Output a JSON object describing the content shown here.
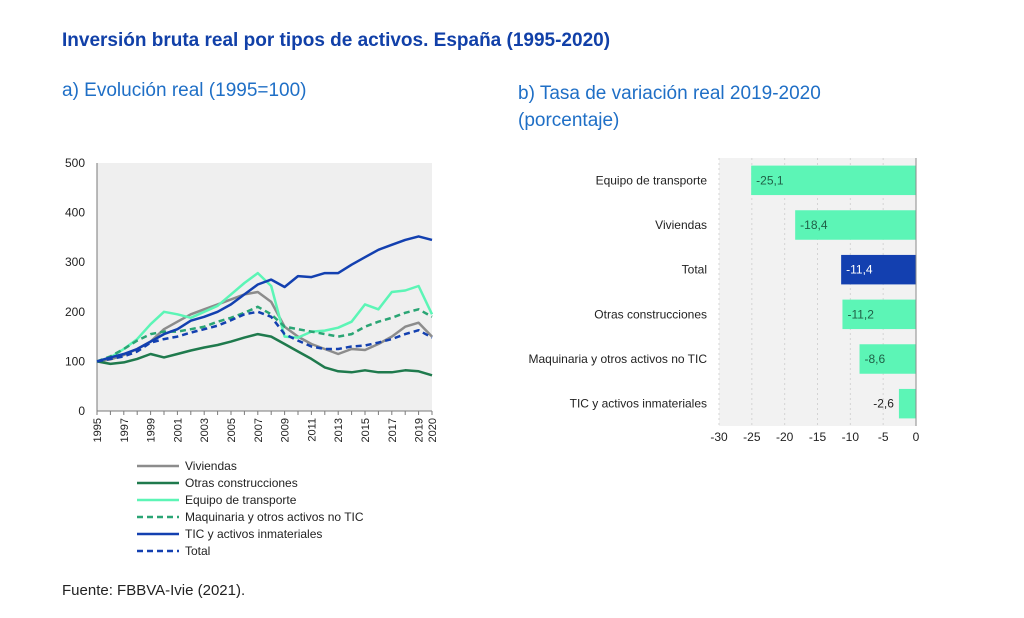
{
  "title": "Inversión bruta real por tipos de activos. España (1995-2020)",
  "subtitle_a": "a) Evolución real (1995=100)",
  "subtitle_b_line1": "b) Tasa de variación real 2019-2020",
  "subtitle_b_line2": "(porcentaje)",
  "source": "Fuente: FBBVA-Ivie (2021).",
  "chart_data": [
    {
      "type": "line",
      "title": "a) Evolución real (1995=100)",
      "x": [
        1995,
        1996,
        1997,
        1998,
        1999,
        2000,
        2001,
        2002,
        2003,
        2004,
        2005,
        2006,
        2007,
        2008,
        2009,
        2010,
        2011,
        2012,
        2013,
        2014,
        2015,
        2016,
        2017,
        2018,
        2019,
        2020
      ],
      "x_tick_labels": [
        "1995",
        "1997",
        "1999",
        "2001",
        "2003",
        "2005",
        "2007",
        "2009",
        "2011",
        "2013",
        "2015",
        "2017",
        "2019",
        "2020"
      ],
      "ylim": [
        0,
        500
      ],
      "y_ticks": [
        0,
        100,
        200,
        300,
        400,
        500
      ],
      "grid": false,
      "legend_position": "bottom",
      "series": [
        {
          "name": "Viviendas",
          "color": "#8c8c8c",
          "dash": false,
          "values": [
            100,
            104,
            113,
            125,
            140,
            165,
            180,
            195,
            205,
            215,
            225,
            235,
            240,
            220,
            170,
            150,
            135,
            125,
            115,
            125,
            123,
            135,
            150,
            170,
            178,
            150
          ]
        },
        {
          "name": "Otras construcciones",
          "color": "#1f7a4d",
          "dash": false,
          "values": [
            100,
            95,
            98,
            105,
            115,
            108,
            115,
            122,
            128,
            133,
            140,
            148,
            155,
            150,
            135,
            120,
            105,
            88,
            80,
            78,
            82,
            78,
            78,
            82,
            80,
            72
          ]
        },
        {
          "name": "Equipo de transporte",
          "color": "#5cf5b6",
          "dash": false,
          "values": [
            100,
            108,
            125,
            145,
            175,
            200,
            195,
            188,
            200,
            212,
            235,
            258,
            278,
            252,
            150,
            148,
            160,
            162,
            168,
            180,
            215,
            205,
            240,
            243,
            252,
            195
          ]
        },
        {
          "name": "Maquinaria y otros activos no TIC",
          "color": "#2aa574",
          "dash": true,
          "values": [
            100,
            110,
            125,
            142,
            155,
            160,
            160,
            165,
            170,
            180,
            188,
            198,
            210,
            195,
            170,
            165,
            160,
            155,
            150,
            155,
            170,
            180,
            188,
            198,
            205,
            190
          ]
        },
        {
          "name": "TIC y activos inmateriales",
          "color": "#1340b0",
          "dash": false,
          "values": [
            100,
            108,
            115,
            125,
            140,
            155,
            165,
            182,
            190,
            200,
            215,
            235,
            255,
            265,
            250,
            272,
            270,
            278,
            278,
            295,
            310,
            325,
            335,
            345,
            352,
            345
          ]
        },
        {
          "name": "Total",
          "color": "#1340b0",
          "dash": true,
          "values": [
            100,
            105,
            110,
            120,
            138,
            145,
            150,
            158,
            165,
            172,
            183,
            195,
            200,
            190,
            155,
            142,
            130,
            125,
            125,
            130,
            132,
            138,
            145,
            155,
            163,
            148
          ]
        }
      ]
    },
    {
      "type": "bar",
      "orientation": "horizontal",
      "title": "b) Tasa de variación real 2019-2020",
      "categories": [
        "Equipo de transporte",
        "Viviendas",
        "Total",
        "Otras construcciones",
        "Maquinaria y otros activos no TIC",
        "TIC y activos inmateriales"
      ],
      "values": [
        -25.1,
        -18.4,
        -11.4,
        -11.2,
        -8.6,
        -2.6
      ],
      "value_labels": [
        "-25,1",
        "-18,4",
        "-11,4",
        "-11,2",
        "-8,6",
        "-2,6"
      ],
      "colors": [
        "#5cf5b6",
        "#5cf5b6",
        "#1340b0",
        "#5cf5b6",
        "#5cf5b6",
        "#5cf5b6"
      ],
      "xlim": [
        -30,
        0
      ],
      "x_ticks": [
        "-30",
        "-25",
        "-20",
        "-15",
        "-10",
        "-5",
        "0"
      ],
      "grid": true
    }
  ]
}
